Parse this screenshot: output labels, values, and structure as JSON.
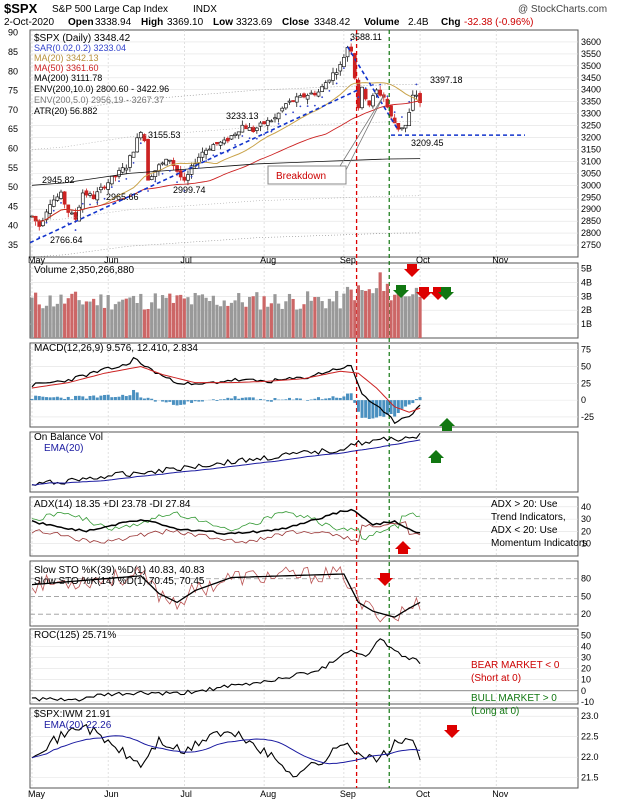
{
  "header": {
    "symbol": "$SPX",
    "name": "S&P 500 Large Cap Index",
    "exchange": "INDX",
    "brand": "@ StockCharts.com",
    "date": "2-Oct-2020",
    "open_label": "Open",
    "open": "3338.94",
    "high_label": "High",
    "high": "3369.10",
    "low_label": "Low",
    "low": "3323.69",
    "close_label": "Close",
    "close": "3348.42",
    "volume_label": "Volume",
    "volume": "2.4B",
    "chg_label": "Chg",
    "chg": "-32.38 (-0.96%)"
  },
  "colors": {
    "up": "#1a1a1a",
    "down": "#cc2222",
    "sar": "#3344cc",
    "ma20": "#c9a34a",
    "ma50": "#cc2222",
    "ma200": "#111111",
    "trend": "#1133cc",
    "red_marker": "#dd0000",
    "green_marker": "#117711",
    "vol_up": "#999999",
    "vol_down": "#cc6666"
  },
  "chart_data": [
    {
      "type": "line",
      "panel": "price",
      "title": "$SPX (Daily) 3348.42",
      "y_right_ticks": [
        2750,
        2800,
        2850,
        2900,
        2950,
        3000,
        3050,
        3100,
        3150,
        3200,
        3250,
        3300,
        3350,
        3400,
        3450,
        3500,
        3550,
        3600
      ],
      "y_left_ticks": [
        35,
        40,
        45,
        50,
        55,
        60,
        65,
        70,
        75,
        80,
        85,
        90
      ],
      "legend": [
        "SAR(0.02,0.2) 3233.04",
        "MA(20) 3342.13",
        "MA(50) 3361.60",
        "MA(200) 3111.78",
        "ENV(200,10.0) 2800.60 - 3422.96",
        "ENV(200,5.0) 2956.19 - 3267.37",
        "ATR(20) 56.882"
      ],
      "x_month_labels": [
        "May",
        "Jun",
        "Jul",
        "Aug",
        "Sep",
        "Oct",
        "Nov"
      ],
      "series": [
        {
          "name": "$SPX",
          "x": [
            "May-1",
            "May-15",
            "Jun-1",
            "Jun-15",
            "Jul-1",
            "Jul-15",
            "Aug-1",
            "Aug-15",
            "Sep-2",
            "Sep-8",
            "Sep-15",
            "Sep-23",
            "Oct-2"
          ],
          "values": [
            2830,
            2880,
            3055,
            3100,
            3110,
            3230,
            3270,
            3380,
            3560,
            3340,
            3400,
            3240,
            3348
          ]
        },
        {
          "name": "MA(200)",
          "values": [
            3000,
            3010,
            3030,
            3050,
            3060,
            3070,
            3080,
            3090,
            3095,
            3100,
            3105,
            3110,
            3112
          ]
        }
      ],
      "annotations": [
        {
          "text": "3588.11"
        },
        {
          "text": "3397.18"
        },
        {
          "text": "3209.45"
        },
        {
          "text": "3233.13"
        },
        {
          "text": "3155.53"
        },
        {
          "text": "2945.82"
        },
        {
          "text": "2965.66"
        },
        {
          "text": "2999.74"
        },
        {
          "text": "2766.64"
        },
        {
          "text": "Breakdown"
        }
      ]
    },
    {
      "type": "bar",
      "panel": "volume",
      "title": "Volume 2,350,266,880",
      "y_ticks": [
        "1B",
        "2B",
        "3B",
        "4B",
        "5B"
      ]
    },
    {
      "type": "line",
      "panel": "macd",
      "title": "MACD(12,26,9) 9.576, 12.410, 2.834",
      "y_ticks": [
        75,
        50,
        25,
        0,
        -25
      ]
    },
    {
      "type": "line",
      "panel": "obv",
      "title": "On Balance Vol",
      "legend": [
        "EMA(20)"
      ]
    },
    {
      "type": "line",
      "panel": "adx",
      "title": "ADX(14) 18.35 +DI 23.78 -DI 27.84",
      "y_ticks": [
        40,
        30,
        20,
        10
      ],
      "note": [
        "ADX > 20: Use",
        "Trend Indicators,",
        "ADX < 20: Use",
        "Momentum Indicators"
      ]
    },
    {
      "type": "line",
      "panel": "sto",
      "title": "Slow STO %K(39) %D(1) 40.83, 40.83",
      "title2": "Slow STO %K(14) %D(1) 70.45, 70.45",
      "y_ticks": [
        80,
        50,
        20
      ]
    },
    {
      "type": "line",
      "panel": "roc",
      "title": "ROC(125) 25.71%",
      "y_ticks": [
        50,
        40,
        30,
        20,
        10,
        0,
        -10
      ],
      "notes": [
        "BEAR MARKET < 0",
        "(Short at 0)",
        "BULL MARKET > 0",
        "(Long at 0)"
      ]
    },
    {
      "type": "line",
      "panel": "ratio",
      "title": "$SPX:IWM 21.91",
      "legend": [
        "EMA(20) 22.26"
      ],
      "y_ticks": [
        23.0,
        22.5,
        22.0,
        21.5
      ],
      "x_month_labels": [
        "May",
        "Jun",
        "Jul",
        "Aug",
        "Sep",
        "Oct",
        "Nov"
      ]
    }
  ]
}
